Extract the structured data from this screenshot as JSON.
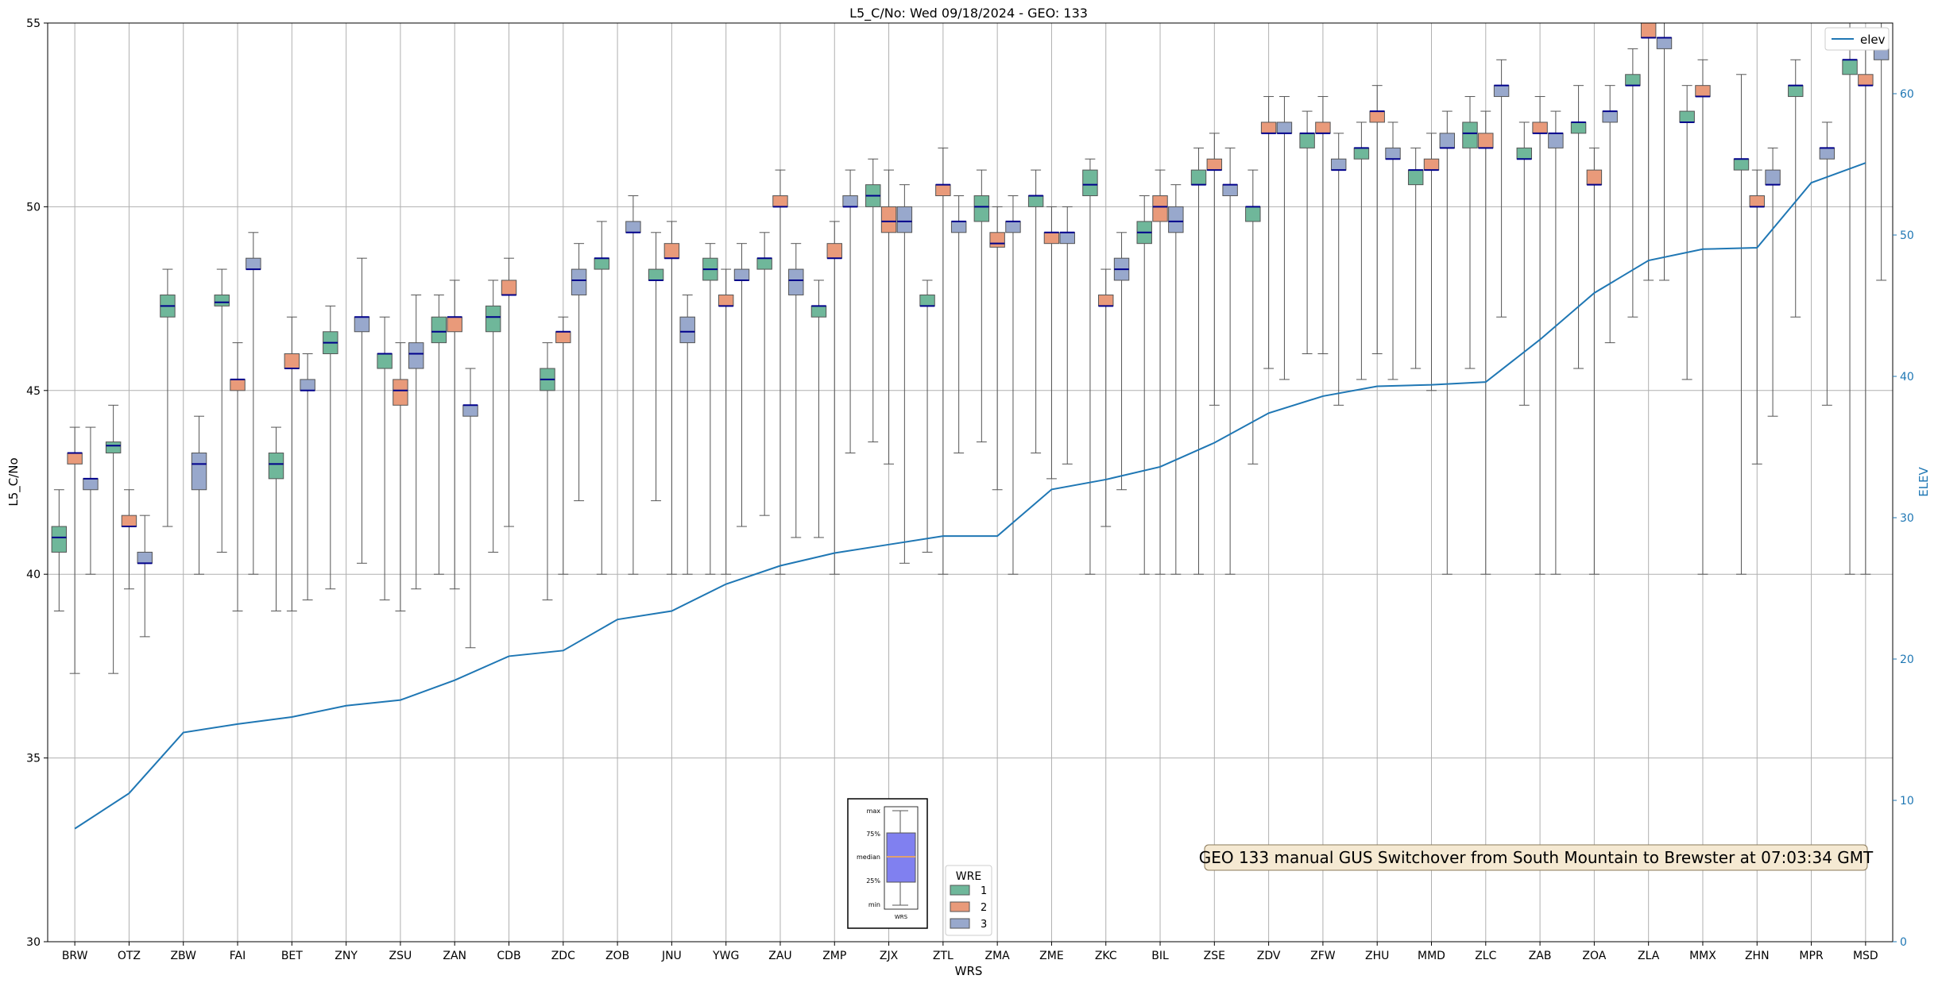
{
  "chart_data": {
    "type": "box",
    "title": "L5_C/No: Wed 09/18/2024 - GEO: 133",
    "xlabel": "WRS",
    "ylabel": "L5_C/No",
    "y2label": "ELEV",
    "ylim": [
      30,
      55
    ],
    "y2lim": [
      0,
      65
    ],
    "yticks": [
      30,
      35,
      40,
      45,
      50,
      55
    ],
    "y2ticks": [
      0,
      10,
      20,
      30,
      40,
      50,
      60
    ],
    "grid": true,
    "categories": [
      "BRW",
      "OTZ",
      "ZBW",
      "FAI",
      "BET",
      "ZNY",
      "ZSU",
      "ZAN",
      "CDB",
      "ZDC",
      "ZOB",
      "JNU",
      "YWG",
      "ZAU",
      "ZMP",
      "ZJX",
      "ZTL",
      "ZMA",
      "ZME",
      "ZKC",
      "BIL",
      "ZSE",
      "ZDV",
      "ZFW",
      "ZHU",
      "MMD",
      "ZLC",
      "ZAB",
      "ZOA",
      "ZLA",
      "MMX",
      "ZHN",
      "MPR",
      "MSD"
    ],
    "box_legend_title": "WRE",
    "series": [
      {
        "name": "1",
        "color": "#6fb79a",
        "boxes": [
          [
            39,
            40.6,
            41,
            41.3,
            42.3
          ],
          [
            37.3,
            43.3,
            43.5,
            43.6,
            44.6
          ],
          [
            41.3,
            47,
            47.3,
            47.6,
            48.3
          ],
          [
            40.6,
            47.3,
            47.4,
            47.6,
            48.3
          ],
          [
            39,
            42.6,
            43,
            43.3,
            44
          ],
          [
            39.6,
            46,
            46.3,
            46.6,
            47.3
          ],
          [
            39.3,
            45.6,
            46,
            46,
            47
          ],
          [
            40,
            46.3,
            46.6,
            47,
            47.6
          ],
          [
            40.6,
            46.6,
            47,
            47.3,
            48
          ],
          [
            39.3,
            45,
            45.3,
            45.6,
            46.3
          ],
          [
            40,
            48.3,
            48.6,
            48.6,
            49.6
          ],
          [
            42,
            48,
            48,
            48.3,
            49.3
          ],
          [
            40,
            48,
            48.3,
            48.6,
            49
          ],
          [
            41.6,
            48.3,
            48.6,
            48.6,
            49.3
          ],
          [
            41,
            47,
            47.3,
            47.3,
            48
          ],
          [
            43.6,
            50,
            50.3,
            50.6,
            51.3
          ],
          [
            40.6,
            47.3,
            47.3,
            47.6,
            48
          ],
          [
            43.6,
            49.6,
            50,
            50.3,
            51
          ],
          [
            43.3,
            50,
            50.3,
            50.3,
            51
          ],
          [
            40,
            50.3,
            50.6,
            51,
            51.3
          ],
          [
            40,
            49,
            49.3,
            49.6,
            50.3
          ],
          [
            40,
            50.6,
            50.6,
            51,
            51.6
          ],
          [
            43,
            49.6,
            50,
            50,
            51
          ],
          [
            46,
            51.6,
            52,
            52,
            52.6
          ],
          [
            45.3,
            51.3,
            51.6,
            51.6,
            52.3
          ],
          [
            45.6,
            50.6,
            51,
            51,
            51.6
          ],
          [
            45.6,
            51.6,
            52,
            52.3,
            53
          ],
          [
            44.6,
            51.3,
            51.3,
            51.6,
            52.3
          ],
          [
            45.6,
            52,
            52.3,
            52.3,
            53.3
          ],
          [
            47,
            53.3,
            53.3,
            53.6,
            54.3
          ],
          [
            45.3,
            52.3,
            52.3,
            52.6,
            53.3
          ],
          [
            40,
            51,
            51.3,
            51.3,
            53.6
          ],
          [
            47,
            53,
            53.3,
            53.3,
            54
          ],
          [
            40,
            53.6,
            54,
            54,
            55
          ]
        ]
      },
      {
        "name": "2",
        "color": "#e99a7a",
        "boxes": [
          [
            37.3,
            43,
            43.3,
            43.3,
            44
          ],
          [
            39.6,
            41.3,
            41.3,
            41.6,
            42.3
          ],
          null,
          [
            39,
            45,
            45.3,
            45.3,
            46.3
          ],
          [
            39,
            45.6,
            45.6,
            46,
            47
          ],
          null,
          [
            39,
            44.6,
            45,
            45.3,
            46.3
          ],
          [
            39.6,
            46.6,
            47,
            47,
            48
          ],
          [
            41.3,
            47.6,
            47.6,
            48,
            48.6
          ],
          [
            40,
            46.3,
            46.6,
            46.6,
            47
          ],
          null,
          [
            40,
            48.6,
            48.6,
            49,
            49.6
          ],
          [
            40,
            47.3,
            47.3,
            47.6,
            48.3
          ],
          [
            40,
            50,
            50,
            50.3,
            51
          ],
          [
            40,
            48.6,
            48.6,
            49,
            49.6
          ],
          [
            43,
            49.3,
            49.6,
            50,
            51
          ],
          [
            40,
            50.3,
            50.6,
            50.6,
            51.6
          ],
          [
            42.3,
            48.9,
            49,
            49.3,
            50
          ],
          [
            42.6,
            49,
            49.3,
            49.3,
            50
          ],
          [
            41.3,
            47.3,
            47.3,
            47.6,
            48.3
          ],
          [
            40,
            49.6,
            50,
            50.3,
            51
          ],
          [
            44.6,
            51,
            51,
            51.3,
            52
          ],
          [
            45.6,
            52,
            52,
            52.3,
            53
          ],
          [
            46,
            52,
            52,
            52.3,
            53
          ],
          [
            46,
            52.3,
            52.6,
            52.6,
            53.3
          ],
          [
            45,
            51,
            51,
            51.3,
            52
          ],
          [
            40,
            51.6,
            51.6,
            52,
            52.6
          ],
          [
            40,
            52,
            52,
            52.3,
            53
          ],
          [
            40,
            50.6,
            50.6,
            51,
            51.6
          ],
          [
            48,
            54.6,
            54.6,
            55,
            55
          ],
          [
            40,
            53,
            53,
            53.3,
            54
          ],
          [
            43,
            50,
            50,
            50.3,
            51
          ],
          null,
          [
            40,
            53.3,
            53.3,
            53.6,
            54.3
          ]
        ]
      },
      {
        "name": "3",
        "color": "#98a8cc",
        "boxes": [
          [
            40,
            42.3,
            42.6,
            42.6,
            44
          ],
          [
            38.3,
            40.3,
            40.3,
            40.6,
            41.6
          ],
          [
            40,
            42.3,
            43,
            43.3,
            44.3
          ],
          [
            40,
            48.3,
            48.3,
            48.6,
            49.3
          ],
          [
            39.3,
            45,
            45,
            45.3,
            46
          ],
          [
            40.3,
            46.6,
            47,
            47,
            48.6
          ],
          [
            39.6,
            45.6,
            46,
            46.3,
            47.6
          ],
          [
            38,
            44.3,
            44.6,
            44.6,
            45.6
          ],
          null,
          [
            42,
            47.6,
            48,
            48.3,
            49
          ],
          [
            40,
            49.3,
            49.3,
            49.6,
            50.3
          ],
          [
            40,
            46.3,
            46.6,
            47,
            47.6
          ],
          [
            41.3,
            48,
            48,
            48.3,
            49
          ],
          [
            41,
            47.6,
            48,
            48.3,
            49
          ],
          [
            43.3,
            50,
            50,
            50.3,
            51
          ],
          [
            40.3,
            49.3,
            49.6,
            50,
            50.6
          ],
          [
            43.3,
            49.3,
            49.6,
            49.6,
            50.3
          ],
          [
            40,
            49.3,
            49.6,
            49.6,
            50.3
          ],
          [
            43,
            49,
            49.3,
            49.3,
            50
          ],
          [
            42.3,
            48,
            48.3,
            48.6,
            49.3
          ],
          [
            40,
            49.3,
            49.6,
            50,
            50.6
          ],
          [
            40,
            50.3,
            50.6,
            50.6,
            51.6
          ],
          [
            45.3,
            52,
            52,
            52.3,
            53
          ],
          [
            44.6,
            51,
            51,
            51.3,
            52
          ],
          [
            45.3,
            51.3,
            51.3,
            51.6,
            52.3
          ],
          [
            40,
            51.6,
            51.6,
            52,
            52.6
          ],
          [
            47,
            53,
            53.3,
            53.3,
            54
          ],
          [
            40,
            51.6,
            52,
            52,
            52.6
          ],
          [
            46.3,
            52.3,
            52.6,
            52.6,
            53.3
          ],
          [
            48,
            54.3,
            54.6,
            54.6,
            55
          ],
          null,
          [
            44.3,
            50.6,
            50.6,
            51,
            51.6
          ],
          [
            44.6,
            51.3,
            51.6,
            51.6,
            52.3
          ],
          [
            48,
            54,
            54.3,
            54.6,
            55
          ]
        ]
      }
    ],
    "elev": {
      "name": "elev",
      "color": "#1f77b4",
      "values": [
        8,
        10.5,
        14.8,
        15.4,
        15.9,
        16.7,
        17.1,
        18.5,
        20.2,
        20.6,
        22.8,
        23.4,
        25.3,
        26.6,
        27.5,
        28.1,
        28.7,
        28.7,
        32,
        32.7,
        33.6,
        35.3,
        37.4,
        38.6,
        39.3,
        39.4,
        39.6,
        42.6,
        45.9,
        48.2,
        49,
        49.1,
        53.7,
        55.1
      ]
    },
    "annotation": "GEO 133 manual GUS Switchover from South Mountain to Brewster at 07:03:34 GMT",
    "inset_legend": {
      "labels": [
        "max",
        "75%",
        "median",
        "25%",
        "min"
      ],
      "xlabel": "WRS"
    },
    "elev_legend_position": "top-right",
    "box_legend_position": "bottom-center"
  }
}
